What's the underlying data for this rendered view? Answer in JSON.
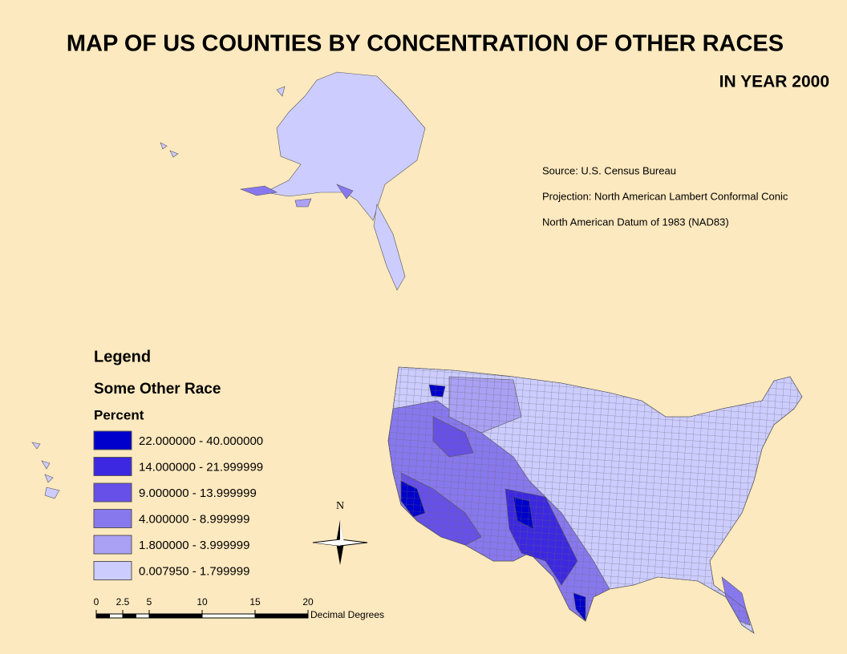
{
  "title": "MAP OF US COUNTIES BY CONCENTRATION OF OTHER RACES",
  "subtitle": "IN YEAR 2000",
  "notes": [
    "Source: U.S. Census Bureau",
    "Projection:  North American Lambert Conformal Conic",
    "North American Datum of 1983 (NAD83)"
  ],
  "legend": {
    "title": "Legend",
    "layer": "Some Other Race",
    "field": "Percent",
    "classes": [
      {
        "label": "22.000000 - 40.000000",
        "color": "#0000cc"
      },
      {
        "label": "14.000000 - 21.999999",
        "color": "#3c28e0"
      },
      {
        "label": "9.000000 - 13.999999",
        "color": "#6650e8"
      },
      {
        "label": "4.000000 - 8.999999",
        "color": "#8878ee"
      },
      {
        "label": "1.800000 - 3.999999",
        "color": "#aaa0f4"
      },
      {
        "label": "0.007950 - 1.799999",
        "color": "#ccccff"
      }
    ]
  },
  "north": "N",
  "scale_bar": {
    "ticks": [
      0,
      2.5,
      5,
      10,
      15,
      20
    ],
    "unit": "Decimal Degrees"
  }
}
